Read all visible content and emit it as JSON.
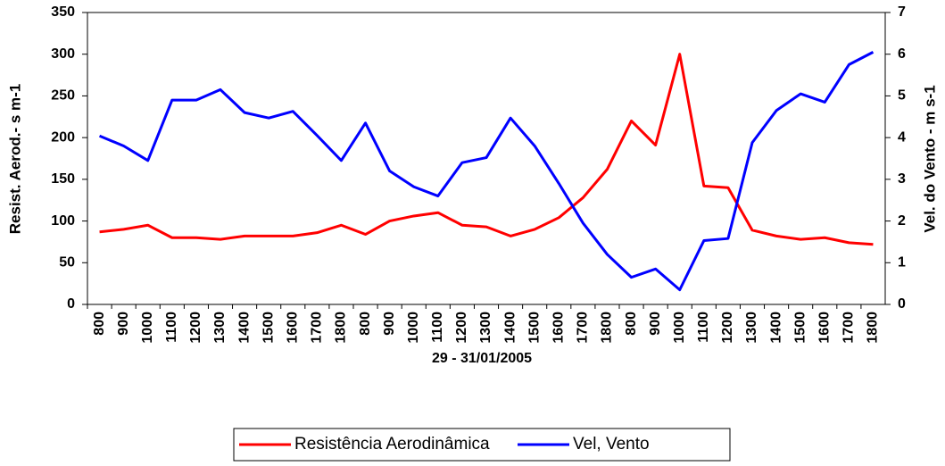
{
  "chart_data": {
    "type": "line",
    "x_label": "29 - 31/01/2005",
    "y_label": "Resist. Aerod.- s m-1",
    "y2_label": "Vel. do Vento - m s-1",
    "categories": [
      "800",
      "900",
      "1000",
      "1100",
      "1200",
      "1300",
      "1400",
      "1500",
      "1600",
      "1700",
      "1800",
      "800",
      "900",
      "1000",
      "1100",
      "1200",
      "1300",
      "1400",
      "1500",
      "1600",
      "1700",
      "1800",
      "800",
      "900",
      "1000",
      "1100",
      "1200",
      "1300",
      "1400",
      "1500",
      "1600",
      "1700",
      "1800"
    ],
    "series": [
      {
        "name": "Resistência Aerodinâmica",
        "color": "#ff0000",
        "values": [
          87,
          90,
          95,
          80,
          80,
          78,
          82,
          82,
          82,
          86,
          95,
          84,
          100,
          106,
          110,
          95,
          93,
          82,
          90,
          104,
          128,
          162,
          220,
          191,
          300,
          142,
          140,
          89,
          82,
          78,
          80,
          74,
          72
        ]
      },
      {
        "name": "Vel, Vento",
        "color": "#0000ff",
        "axis": "y2",
        "values": [
          4.04,
          3.8,
          3.45,
          4.9,
          4.9,
          5.15,
          4.6,
          4.47,
          4.63,
          4.05,
          3.45,
          4.35,
          3.2,
          2.82,
          2.6,
          3.4,
          3.52,
          4.47,
          3.8,
          2.9,
          1.95,
          1.2,
          0.65,
          0.85,
          0.35,
          1.53,
          1.58,
          3.88,
          4.65,
          5.05,
          4.85,
          5.75,
          6.05
        ]
      }
    ],
    "ylim": [
      0,
      350
    ],
    "yticks": [
      0,
      50,
      100,
      150,
      200,
      250,
      300,
      350
    ],
    "y2lim": [
      0,
      7
    ],
    "y2ticks": [
      0,
      1,
      2,
      3,
      4,
      5,
      6,
      7
    ],
    "legend": "bottom"
  }
}
